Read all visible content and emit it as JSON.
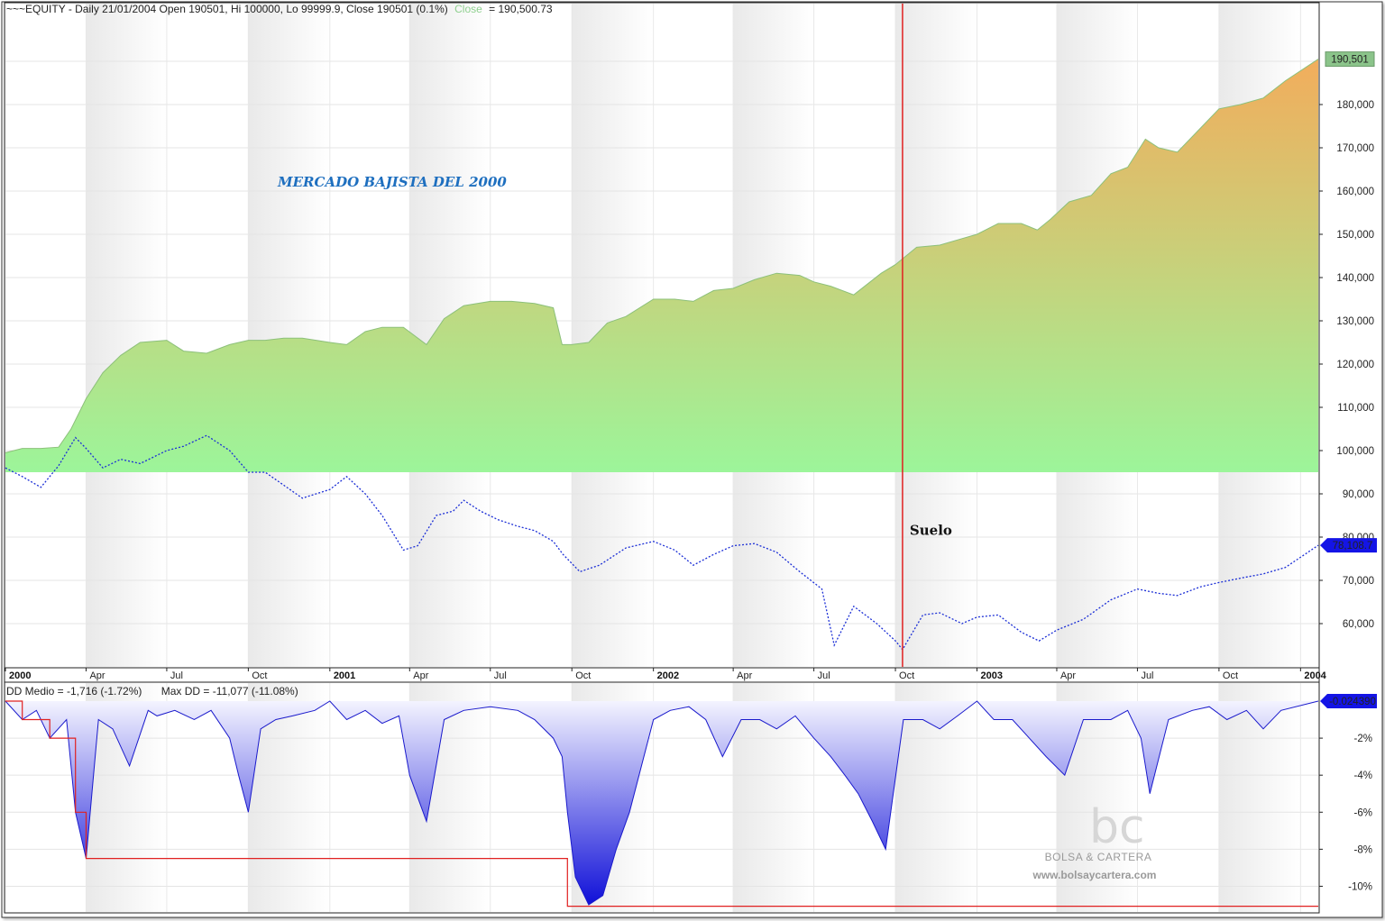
{
  "chart_data": [
    {
      "type": "area",
      "header": {
        "prefix": "~~~EQUITY - Daily 21/01/2004 Open 190501, Hi 100000, Lo 99999.9, Close 190501 (0.1%)",
        "close_label": "Close",
        "close_value": "= 190,500.73"
      },
      "ylim": [
        50000,
        200000
      ],
      "y_ticks": [
        60000,
        70000,
        80000,
        90000,
        100000,
        110000,
        120000,
        130000,
        140000,
        150000,
        160000,
        170000,
        180000
      ],
      "y_tick_labels": [
        "60,000",
        "70,000",
        "80,000",
        "90,000",
        "100,000",
        "110,000",
        "120,000",
        "130,000",
        "140,000",
        "150,000",
        "160,000",
        "170,000",
        "180,000"
      ],
      "x_range": [
        "2000-01-01",
        "2004-01-21"
      ],
      "x_ticks": [
        {
          "date": "2000-01-01",
          "label": "2000",
          "year": true
        },
        {
          "date": "2000-04-01",
          "label": "Apr",
          "year": false
        },
        {
          "date": "2000-07-01",
          "label": "Jul",
          "year": false
        },
        {
          "date": "2000-10-01",
          "label": "Oct",
          "year": false
        },
        {
          "date": "2001-01-01",
          "label": "2001",
          "year": true
        },
        {
          "date": "2001-04-01",
          "label": "Apr",
          "year": false
        },
        {
          "date": "2001-07-01",
          "label": "Jul",
          "year": false
        },
        {
          "date": "2001-10-01",
          "label": "Oct",
          "year": false
        },
        {
          "date": "2002-01-01",
          "label": "2002",
          "year": true
        },
        {
          "date": "2002-04-01",
          "label": "Apr",
          "year": false
        },
        {
          "date": "2002-07-01",
          "label": "Jul",
          "year": false
        },
        {
          "date": "2002-10-01",
          "label": "Oct",
          "year": false
        },
        {
          "date": "2003-01-01",
          "label": "2003",
          "year": true
        },
        {
          "date": "2003-04-01",
          "label": "Apr",
          "year": false
        },
        {
          "date": "2003-07-01",
          "label": "Jul",
          "year": false
        },
        {
          "date": "2003-10-01",
          "label": "Oct",
          "year": false
        },
        {
          "date": "2004-01-01",
          "label": "2004",
          "year": true
        }
      ],
      "series": [
        {
          "role": "equity",
          "style": "area",
          "area_base": 95000,
          "color_bottom": "#9cf59a",
          "color_top": "#f2ad5c",
          "last_value_label": "190,501",
          "last_value_color": "#8bc48a",
          "x": [
            "2000-01-01",
            "2000-01-20",
            "2000-02-10",
            "2000-03-01",
            "2000-03-15",
            "2000-04-01",
            "2000-04-20",
            "2000-05-10",
            "2000-06-01",
            "2000-07-01",
            "2000-07-20",
            "2000-08-15",
            "2000-09-10",
            "2000-10-01",
            "2000-10-20",
            "2000-11-10",
            "2000-12-01",
            "2001-01-01",
            "2001-01-20",
            "2001-02-10",
            "2001-03-01",
            "2001-03-25",
            "2001-04-20",
            "2001-05-10",
            "2001-06-01",
            "2001-07-01",
            "2001-07-25",
            "2001-08-20",
            "2001-09-10",
            "2001-09-20",
            "2001-10-01",
            "2001-10-20",
            "2001-11-10",
            "2001-12-01",
            "2002-01-01",
            "2002-01-25",
            "2002-02-15",
            "2002-03-10",
            "2002-04-01",
            "2002-04-25",
            "2002-05-20",
            "2002-06-15",
            "2002-07-01",
            "2002-07-20",
            "2002-08-15",
            "2002-09-15",
            "2002-10-01",
            "2002-10-25",
            "2002-11-20",
            "2002-12-15",
            "2003-01-01",
            "2003-01-25",
            "2003-02-20",
            "2003-03-10",
            "2003-03-25",
            "2003-04-15",
            "2003-05-10",
            "2003-06-01",
            "2003-06-20",
            "2003-07-10",
            "2003-07-25",
            "2003-08-15",
            "2003-09-10",
            "2003-10-01",
            "2003-10-25",
            "2003-11-20",
            "2003-12-15",
            "2004-01-21"
          ],
          "values": [
            99500,
            100500,
            100500,
            100800,
            105000,
            112000,
            118000,
            122000,
            125000,
            125500,
            123000,
            122500,
            124500,
            125500,
            125500,
            126000,
            126000,
            125000,
            124500,
            127500,
            128500,
            128500,
            124500,
            130500,
            133500,
            134500,
            134500,
            134000,
            133000,
            124500,
            124500,
            125000,
            129500,
            131000,
            135000,
            135000,
            134500,
            137000,
            137500,
            139500,
            141000,
            140500,
            139000,
            138000,
            136000,
            141000,
            143000,
            147000,
            147500,
            149000,
            150000,
            152500,
            152500,
            151000,
            153500,
            157500,
            159000,
            164000,
            165500,
            172000,
            170000,
            169000,
            174500,
            179000,
            180000,
            181500,
            185500,
            190501
          ]
        },
        {
          "role": "benchmark",
          "style": "dotted-line",
          "color": "#1c2fd6",
          "last_value_label": "78,108.7",
          "x": [
            "2000-01-01",
            "2000-01-20",
            "2000-02-10",
            "2000-03-01",
            "2000-03-20",
            "2000-04-01",
            "2000-04-20",
            "2000-05-10",
            "2000-06-01",
            "2000-07-01",
            "2000-07-20",
            "2000-08-15",
            "2000-09-10",
            "2000-10-01",
            "2000-10-20",
            "2000-11-10",
            "2000-12-01",
            "2001-01-01",
            "2001-01-20",
            "2001-02-10",
            "2001-03-01",
            "2001-03-25",
            "2001-04-10",
            "2001-05-01",
            "2001-05-20",
            "2001-06-01",
            "2001-06-20",
            "2001-07-10",
            "2001-08-01",
            "2001-08-20",
            "2001-09-10",
            "2001-09-21",
            "2001-10-10",
            "2001-11-01",
            "2001-12-01",
            "2002-01-01",
            "2002-01-25",
            "2002-02-15",
            "2002-03-10",
            "2002-04-01",
            "2002-04-25",
            "2002-05-20",
            "2002-06-15",
            "2002-07-10",
            "2002-07-24",
            "2002-08-15",
            "2002-09-10",
            "2002-10-01",
            "2002-10-09",
            "2002-11-01",
            "2002-11-20",
            "2002-12-15",
            "2003-01-01",
            "2003-01-25",
            "2003-02-20",
            "2003-03-12",
            "2003-04-01",
            "2003-05-01",
            "2003-06-01",
            "2003-07-01",
            "2003-07-25",
            "2003-08-15",
            "2003-09-10",
            "2003-10-01",
            "2003-10-25",
            "2003-11-20",
            "2003-12-15",
            "2004-01-21"
          ],
          "values": [
            96000,
            94000,
            91500,
            96500,
            103000,
            100500,
            96000,
            98000,
            97000,
            100000,
            101000,
            103500,
            100000,
            95000,
            95000,
            92000,
            89000,
            91000,
            94000,
            90000,
            85000,
            77000,
            78000,
            85000,
            86000,
            88500,
            86000,
            84000,
            82500,
            81500,
            79000,
            76000,
            72000,
            73500,
            77500,
            79000,
            77000,
            73500,
            76000,
            78000,
            78500,
            76500,
            72000,
            68000,
            55000,
            64000,
            60000,
            56000,
            54000,
            62000,
            62500,
            60000,
            61500,
            62000,
            58000,
            56000,
            58500,
            61000,
            65500,
            68000,
            67000,
            66500,
            68500,
            69500,
            70500,
            71500,
            73000,
            78108.7
          ]
        }
      ],
      "annotations": [
        {
          "text": "MERCADO BAJISTA DEL 2000",
          "date": "2000-12-20",
          "value": 161000
        },
        {
          "text": "Suelo",
          "date": "2002-10-09",
          "value": 80500
        }
      ],
      "vertical_marker": {
        "date": "2002-10-09",
        "color": "#e02020"
      }
    },
    {
      "type": "area",
      "header": {
        "dd_medio": "DD Medio = -1,716 (-1.72%)",
        "max_dd": "Max DD = -11,077 (-11.08%)"
      },
      "ylim": [
        -11,
        0
      ],
      "y_ticks": [
        -2,
        -4,
        -6,
        -8,
        -10
      ],
      "y_tick_labels": [
        "-2%",
        "-4%",
        "-6%",
        "-8%",
        "-10%"
      ],
      "x_range": [
        "2000-01-01",
        "2004-01-21"
      ],
      "series": [
        {
          "role": "drawdown",
          "style": "area",
          "color": "#1010d8",
          "last_value_label": "-0.024390",
          "x": [
            "2000-01-01",
            "2000-01-20",
            "2000-02-05",
            "2000-02-20",
            "2000-03-10",
            "2000-03-20",
            "2000-04-01",
            "2000-04-15",
            "2000-05-01",
            "2000-05-20",
            "2000-06-10",
            "2000-06-20",
            "2000-07-10",
            "2000-08-01",
            "2000-08-20",
            "2000-09-10",
            "2000-09-20",
            "2000-10-01",
            "2000-10-15",
            "2000-11-01",
            "2000-11-20",
            "2000-12-15",
            "2001-01-01",
            "2001-01-20",
            "2001-02-10",
            "2001-03-01",
            "2001-03-20",
            "2001-04-01",
            "2001-04-20",
            "2001-05-10",
            "2001-06-01",
            "2001-07-01",
            "2001-08-01",
            "2001-08-20",
            "2001-09-10",
            "2001-09-20",
            "2001-09-26",
            "2001-10-05",
            "2001-10-20",
            "2001-11-05",
            "2001-11-20",
            "2001-12-05",
            "2002-01-01",
            "2002-01-20",
            "2002-02-10",
            "2002-03-01",
            "2002-03-20",
            "2002-04-10",
            "2002-05-01",
            "2002-05-20",
            "2002-06-10",
            "2002-07-01",
            "2002-07-20",
            "2002-08-05",
            "2002-08-20",
            "2002-09-05",
            "2002-09-20",
            "2002-10-10",
            "2002-11-01",
            "2002-11-20",
            "2002-12-10",
            "2003-01-01",
            "2003-01-20",
            "2003-02-10",
            "2003-03-01",
            "2003-03-20",
            "2003-04-10",
            "2003-05-01",
            "2003-06-01",
            "2003-06-20",
            "2003-07-05",
            "2003-07-15",
            "2003-08-05",
            "2003-09-01",
            "2003-09-20",
            "2003-10-10",
            "2003-11-01",
            "2003-11-20",
            "2003-12-10",
            "2004-01-21"
          ],
          "values": [
            0,
            -1,
            -0.5,
            -2,
            -1,
            -6,
            -8.5,
            -1,
            -1.5,
            -3.5,
            -0.5,
            -0.8,
            -0.5,
            -1,
            -0.5,
            -2,
            -4,
            -6,
            -1.5,
            -1,
            -0.8,
            -0.5,
            0,
            -1,
            -0.5,
            -1.2,
            -0.8,
            -4,
            -6.5,
            -1,
            -0.5,
            -0.3,
            -0.5,
            -1,
            -2,
            -3,
            -6,
            -9.5,
            -11,
            -10.5,
            -8,
            -6,
            -1,
            -0.5,
            -0.3,
            -1,
            -3,
            -1,
            -1,
            -1.5,
            -0.8,
            -2,
            -3,
            -4,
            -5,
            -6.5,
            -8,
            -1,
            -1,
            -1.5,
            -0.8,
            0,
            -1,
            -1,
            -2,
            -3,
            -4,
            -1,
            -1,
            -0.5,
            -2,
            -5,
            -1,
            -0.5,
            -0.3,
            -1,
            -0.5,
            -1.5,
            -0.5,
            0
          ]
        },
        {
          "role": "max-drawdown",
          "style": "step-line",
          "color": "#e02020",
          "x": [
            "2000-01-01",
            "2000-01-20",
            "2000-02-05",
            "2000-02-20",
            "2000-03-10",
            "2000-03-20",
            "2000-04-01",
            "2001-09-20",
            "2001-09-26",
            "2004-01-21"
          ],
          "values": [
            0,
            -1,
            -1,
            -2,
            -2,
            -6,
            -8.5,
            -8.5,
            -11.08,
            -11.08
          ]
        }
      ]
    }
  ],
  "watermark": {
    "logo": "bc",
    "name": "BOLSA & CARTERA",
    "url": "www.bolsaycartera.com"
  }
}
